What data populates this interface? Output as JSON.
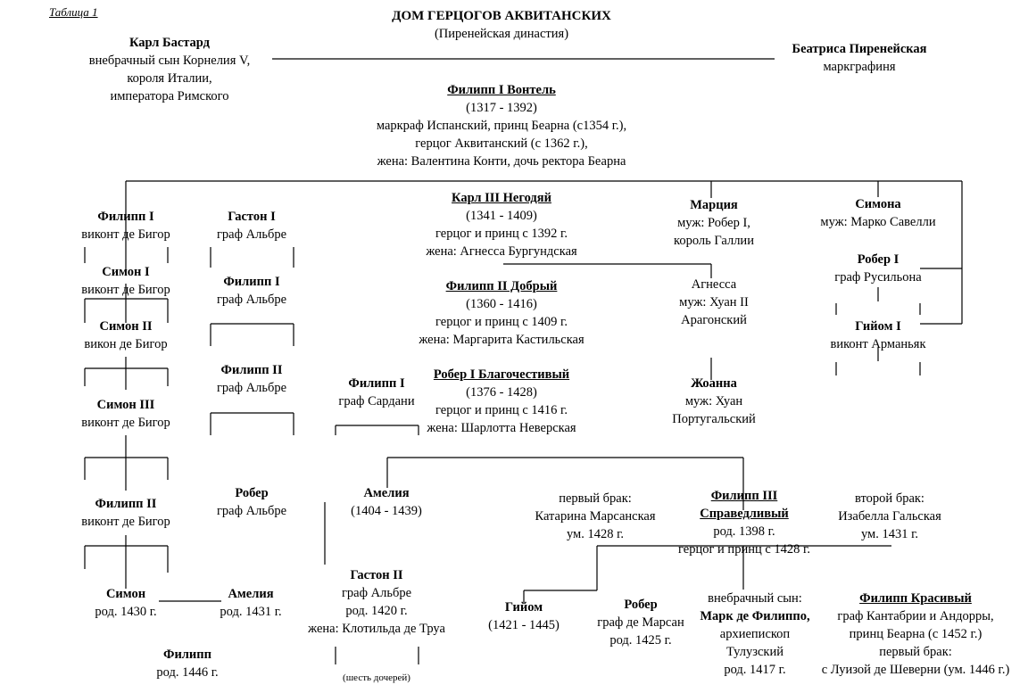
{
  "header": {
    "table_label": "Таблица 1",
    "title": "ДОМ ГЕРЦОГОВ АКВИТАНСКИХ",
    "subtitle": "(Пиренейская династия)"
  },
  "people": {
    "karl_bastard": [
      "Карл Бастард",
      "внебрачный сын Корнелия V,",
      "короля Италии,",
      "императора Римского"
    ],
    "beatrice": [
      "Беатриса Пиренейская",
      "маркграфиня"
    ],
    "philippe_vontel": [
      "Филипп I Вонтель",
      "(1317 - 1392)",
      "маркраф Испанский, принц Беарна (с1354 г.),",
      "герцог Аквитанский (с 1362 г.),",
      "жена: Валентина Конти, дочь ректора Беарна"
    ],
    "philippe_bigor_1": [
      "Филипп I",
      "виконт де Бигор"
    ],
    "gaston_1": [
      "Гастон I",
      "граф Альбре"
    ],
    "simon_1": [
      "Симон I",
      "виконт де Бигор"
    ],
    "philippe_albret_1": [
      "Филипп I",
      "граф Альбре"
    ],
    "simon_2": [
      "Симон II",
      "викон де Бигор"
    ],
    "philippe_albret_2": [
      "Филипп II",
      "граф Альбре"
    ],
    "philippe_sardani": [
      "Филипп I",
      "граф Сардани"
    ],
    "simon_3": [
      "Симон III",
      "виконт де Бигор"
    ],
    "karl_3": [
      "Карл III Негодяй",
      "(1341 - 1409)",
      "герцог и принц с 1392 г.",
      "жена: Агнесса Бургундская"
    ],
    "philippe_2_good": [
      "Филипп II Добрый",
      "(1360 - 1416)",
      "герцог и принц с 1409 г.",
      "жена: Маргарита Кастильская"
    ],
    "robert_pious": [
      "Робер I Благочестивый",
      "(1376 - 1428)",
      "герцог и принц с 1416 г.",
      "жена: Шарлотта Неверская"
    ],
    "marcia": [
      "Марция",
      "муж: Робер I,",
      "король Галлии"
    ],
    "agnessa": [
      "Агнесса",
      "муж: Хуан II",
      "Арагонский"
    ],
    "joanna": [
      "Жоанна",
      "муж: Хуан",
      "Португальский"
    ],
    "simona": [
      "Симона",
      "муж: Марко Савелли"
    ],
    "robert_roussillon": [
      "Робер I",
      "граф Русильона"
    ],
    "guillaume_armagnac": [
      "Гийом I",
      "виконт Арманьяк"
    ],
    "philippe_bigor_2": [
      "Филипп II",
      "виконт де Бигор"
    ],
    "robert_albret": [
      "Робер",
      "граф Альбре"
    ],
    "amelia_1404": [
      "Амелия",
      "(1404 - 1439)"
    ],
    "first_marriage": [
      "первый брак:",
      "Катарина Марсанская",
      "ум. 1428 г."
    ],
    "philippe_3": [
      "Филипп III",
      "Справедливый",
      "род. 1398 г.",
      "герцог и принц с 1428 г."
    ],
    "second_marriage": [
      "второй брак:",
      "Изабелла Гальская",
      "ум. 1431 г."
    ],
    "gaston_2": [
      "Гастон II",
      "граф Альбре",
      "род. 1420 г.",
      "жена: Клотильда де Труа"
    ],
    "six_daughters": [
      "(шесть дочерей)"
    ],
    "simon_1430": [
      "Симон",
      "род. 1430 г."
    ],
    "amelia_1431": [
      "Амелия",
      "род. 1431 г."
    ],
    "philippe_1446": [
      "Филипп",
      "род. 1446 г."
    ],
    "guillaume_1421": [
      "Гийом",
      "(1421 - 1445)"
    ],
    "robert_marsan": [
      "Робер",
      "граф де Марсан",
      "род. 1425 г."
    ],
    "marc_de_philippo": [
      "внебрачный сын:",
      "Марк де Филиппо,",
      "архиепископ",
      "Тулузский",
      "род. 1417 г."
    ],
    "philippe_handsome": [
      "Филипп Красивый",
      "граф Кантабрии и Андорры,",
      "принц Беарна (с 1452 г.)",
      "первый брак:",
      "с Луизой де Шеверни (ум. 1446 г.)"
    ]
  }
}
